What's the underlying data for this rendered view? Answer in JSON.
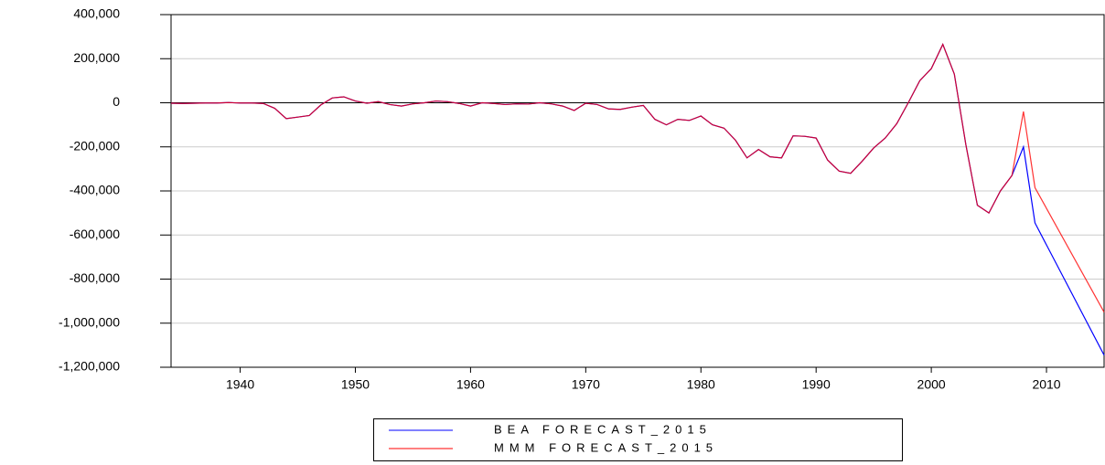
{
  "chart_data": {
    "type": "line",
    "x": [
      1934,
      1935,
      1936,
      1937,
      1938,
      1939,
      1940,
      1941,
      1942,
      1943,
      1944,
      1945,
      1946,
      1947,
      1948,
      1949,
      1950,
      1951,
      1952,
      1953,
      1954,
      1955,
      1956,
      1957,
      1958,
      1959,
      1960,
      1961,
      1962,
      1963,
      1964,
      1965,
      1966,
      1967,
      1968,
      1969,
      1970,
      1971,
      1972,
      1973,
      1974,
      1975,
      1976,
      1977,
      1978,
      1979,
      1980,
      1981,
      1982,
      1983,
      1984,
      1985,
      1986,
      1987,
      1988,
      1989,
      1990,
      1991,
      1992,
      1993,
      1994,
      1995,
      1996,
      1997,
      1998,
      1999,
      2000,
      2001,
      2002,
      2003,
      2004,
      2005,
      2006,
      2007,
      2008,
      2009,
      2015
    ],
    "series": [
      {
        "name": "BEA FORECAST_2015",
        "color": "#0000ff",
        "values": [
          -2000,
          -3000,
          -2000,
          -1000,
          -1000,
          1000,
          -1000,
          -1000,
          -3000,
          -25000,
          -72000,
          -65000,
          -58000,
          -10000,
          22000,
          27000,
          8000,
          -2000,
          5000,
          -8000,
          -15000,
          -5000,
          0,
          8000,
          5000,
          -3000,
          -15000,
          0,
          -3000,
          -8000,
          -5000,
          -6000,
          0,
          -5000,
          -15000,
          -35000,
          -2000,
          -8000,
          -28000,
          -30000,
          -20000,
          -12000,
          -75000,
          -100000,
          -75000,
          -80000,
          -60000,
          -100000,
          -115000,
          -170000,
          -250000,
          -212000,
          -245000,
          -250000,
          -150000,
          -152000,
          -160000,
          -260000,
          -310000,
          -320000,
          -265000,
          -205000,
          -160000,
          -95000,
          0,
          100000,
          155000,
          265000,
          130000,
          -190000,
          -465000,
          -500000,
          -400000,
          -330000,
          -200000,
          -545000,
          -1145000
        ]
      },
      {
        "name": "MMM FORECAST_2015",
        "color": "#ff0000",
        "values": [
          -2000,
          -3000,
          -2000,
          -1000,
          -1000,
          1000,
          -1000,
          -1000,
          -3000,
          -25000,
          -72000,
          -65000,
          -58000,
          -10000,
          22000,
          27000,
          8000,
          -2000,
          5000,
          -8000,
          -15000,
          -5000,
          0,
          8000,
          5000,
          -3000,
          -15000,
          0,
          -3000,
          -8000,
          -5000,
          -6000,
          0,
          -5000,
          -15000,
          -35000,
          -2000,
          -8000,
          -28000,
          -30000,
          -20000,
          -12000,
          -75000,
          -100000,
          -75000,
          -80000,
          -60000,
          -100000,
          -115000,
          -170000,
          -250000,
          -212000,
          -245000,
          -250000,
          -150000,
          -152000,
          -160000,
          -260000,
          -310000,
          -320000,
          -265000,
          -205000,
          -160000,
          -95000,
          0,
          100000,
          155000,
          265000,
          130000,
          -190000,
          -465000,
          -500000,
          -400000,
          -330000,
          -40000,
          -385000,
          -950000
        ]
      }
    ],
    "xlim": [
      1934,
      2015
    ],
    "xticks": [
      1940,
      1950,
      1960,
      1970,
      1980,
      1990,
      2000,
      2010
    ],
    "ylim": [
      -1200000,
      400000
    ],
    "yticks": [
      {
        "value": -1200000,
        "label": "-1,200,000"
      },
      {
        "value": -1000000,
        "label": "-1,000,000"
      },
      {
        "value": -800000,
        "label": "-800,000"
      },
      {
        "value": -600000,
        "label": "-600,000"
      },
      {
        "value": -400000,
        "label": "-400,000"
      },
      {
        "value": -200000,
        "label": "-200,000"
      },
      0,
      {
        "value": 200000,
        "label": "200,000"
      },
      {
        "value": 400000,
        "label": "400,000"
      }
    ],
    "grid": true,
    "legend": "bottom"
  }
}
